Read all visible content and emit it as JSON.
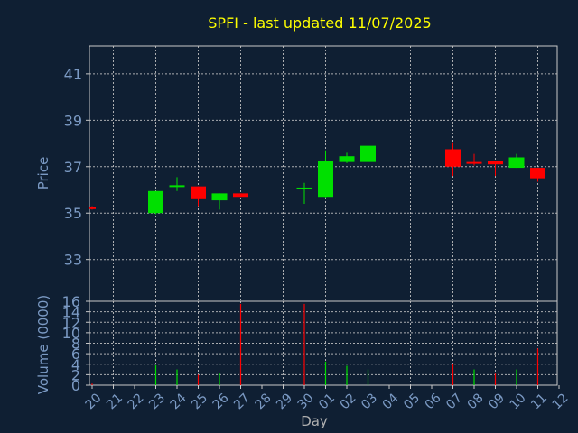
{
  "chart_data": {
    "type": "candlestick",
    "title": "SPFI - last updated 11/07/2025",
    "xlabel": "Day",
    "price_ylabel": "Price",
    "volume_ylabel": "Volume (0000)",
    "price_ylim": [
      31.2,
      42.2
    ],
    "volume_ylim": [
      0,
      16
    ],
    "price_ticks": [
      33,
      35,
      37,
      39,
      41
    ],
    "volume_ticks": [
      0,
      2,
      4,
      6,
      8,
      10,
      12,
      14,
      16
    ],
    "x_labels": [
      "20",
      "21",
      "22",
      "23",
      "24",
      "25",
      "26",
      "27",
      "28",
      "29",
      "30",
      "01",
      "02",
      "03",
      "04",
      "05",
      "06",
      "07",
      "08",
      "09",
      "10",
      "11",
      "12"
    ],
    "candles": [
      {
        "x": "20",
        "open": 35.25,
        "close": 35.2,
        "high": 35.3,
        "low": 35.15
      },
      {
        "x": "23",
        "open": 35.0,
        "close": 35.95,
        "high": 35.95,
        "low": 34.95
      },
      {
        "x": "24",
        "open": 36.15,
        "close": 36.2,
        "high": 36.55,
        "low": 35.95
      },
      {
        "x": "25",
        "open": 36.15,
        "close": 35.6,
        "high": 36.15,
        "low": 35.3
      },
      {
        "x": "26",
        "open": 35.55,
        "close": 35.85,
        "high": 35.85,
        "low": 35.15
      },
      {
        "x": "27",
        "open": 35.85,
        "close": 35.7,
        "high": 35.85,
        "low": 35.7
      },
      {
        "x": "30",
        "open": 36.05,
        "close": 36.1,
        "high": 36.3,
        "low": 35.4
      },
      {
        "x": "01",
        "open": 35.7,
        "close": 37.25,
        "high": 37.7,
        "low": 35.65
      },
      {
        "x": "02",
        "open": 37.2,
        "close": 37.45,
        "high": 37.6,
        "low": 37.15
      },
      {
        "x": "03",
        "open": 37.2,
        "close": 37.9,
        "high": 37.9,
        "low": 37.15
      },
      {
        "x": "07",
        "open": 37.75,
        "close": 37.0,
        "high": 38.05,
        "low": 36.6
      },
      {
        "x": "08",
        "open": 37.2,
        "close": 37.15,
        "high": 37.55,
        "low": 37.05
      },
      {
        "x": "09",
        "open": 37.25,
        "close": 37.1,
        "high": 37.25,
        "low": 36.6
      },
      {
        "x": "10",
        "open": 36.95,
        "close": 37.4,
        "high": 37.55,
        "low": 36.95
      },
      {
        "x": "11",
        "open": 36.95,
        "close": 36.5,
        "high": 36.95,
        "low": 36.35
      }
    ],
    "volumes": [
      {
        "x": "20",
        "value": 0.3,
        "up": false
      },
      {
        "x": "23",
        "value": 3.8,
        "up": true
      },
      {
        "x": "24",
        "value": 3.0,
        "up": true
      },
      {
        "x": "25",
        "value": 2.0,
        "up": false
      },
      {
        "x": "26",
        "value": 2.4,
        "up": true
      },
      {
        "x": "27",
        "value": 15.5,
        "up": false
      },
      {
        "x": "30",
        "value": 15.5,
        "up": false
      },
      {
        "x": "01",
        "value": 4.5,
        "up": true
      },
      {
        "x": "02",
        "value": 3.7,
        "up": true
      },
      {
        "x": "03",
        "value": 3.0,
        "up": true
      },
      {
        "x": "07",
        "value": 4.0,
        "up": false
      },
      {
        "x": "08",
        "value": 3.0,
        "up": true
      },
      {
        "x": "09",
        "value": 2.2,
        "up": false
      },
      {
        "x": "10",
        "value": 3.0,
        "up": true
      },
      {
        "x": "11",
        "value": 7.0,
        "up": false
      }
    ],
    "colors": {
      "up": "#00e000",
      "down": "#ff0000",
      "title": "#ffff00",
      "axis_text": "#7b9ac4",
      "background": "#0f1f33",
      "grid": "#c8c8c8"
    }
  }
}
